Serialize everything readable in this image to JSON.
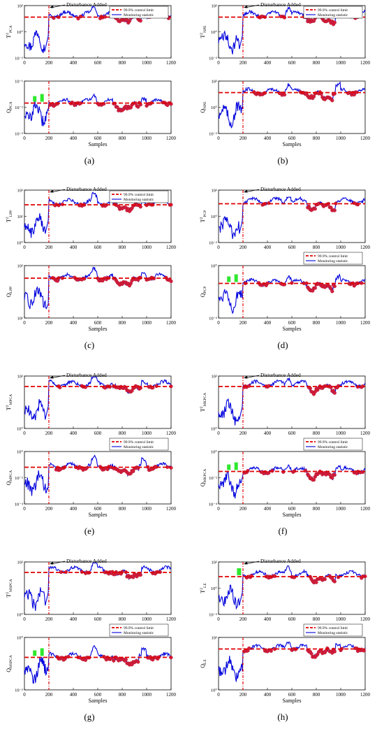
{
  "figure": {
    "captions": [
      "(a)",
      "(b)",
      "(c)",
      "(d)",
      "(e)",
      "(f)",
      "(g)",
      "(h)"
    ]
  },
  "common": {
    "disturbance_label": "Disturbance Added",
    "legend_limit": "99.9% control limit",
    "legend_stat": "Monitoring statistic",
    "xlabel": "Samples",
    "xticks": [
      "0",
      "200",
      "400",
      "600",
      "800",
      "1000",
      "1200"
    ],
    "colors": {
      "limit": "#e00000",
      "stat": "#0000dd",
      "fault": "#d21e3c",
      "alarm": "#2ee82e"
    }
  },
  "chart_data": [
    {
      "panel": "a",
      "type": "line",
      "ylabel_base": "T",
      "ylabel_sup": "2",
      "ylabel_sub": "PCA",
      "yticks": [
        "10⁻²",
        "10⁰",
        "10²"
      ],
      "limit_level": 0.78,
      "x": [
        0,
        1200
      ]
    },
    {
      "panel": "a",
      "type": "line",
      "ylabel_base": "Q",
      "ylabel_sup": "",
      "ylabel_sub": "PCA",
      "yticks": [
        "10⁻³",
        "10⁻²",
        "10⁻¹"
      ],
      "limit_level": 0.58,
      "x": [
        0,
        1200
      ]
    },
    {
      "panel": "b",
      "type": "line",
      "ylabel_base": "T",
      "ylabel_sup": "2",
      "ylabel_sub": "NPE",
      "yticks": [
        "10⁻²",
        "10⁰",
        "10²"
      ],
      "limit_level": 0.78,
      "x": [
        0,
        1200
      ]
    },
    {
      "panel": "b",
      "type": "line",
      "ylabel_base": "Q",
      "ylabel_sup": "",
      "ylabel_sub": "NPE",
      "yticks": [
        "10⁻²",
        "10⁰",
        "10²"
      ],
      "limit_level": 0.78,
      "x": [
        0,
        1200
      ]
    },
    {
      "panel": "c",
      "type": "line",
      "ylabel_base": "T",
      "ylabel_sup": "2",
      "ylabel_sub": "LPP",
      "yticks": [
        "10⁰",
        "10¹",
        "10²"
      ],
      "limit_level": 0.72,
      "x": [
        0,
        1200
      ]
    },
    {
      "panel": "c",
      "type": "line",
      "ylabel_base": "Q",
      "ylabel_sup": "",
      "ylabel_sub": "LPP",
      "yticks": [
        "10¹",
        "10²"
      ],
      "limit_level": 0.76,
      "x": [
        0,
        1200
      ]
    },
    {
      "panel": "d",
      "type": "line",
      "ylabel_base": "T",
      "ylabel_sup": "2",
      "ylabel_sub": "PCP",
      "yticks": [
        "10⁻²",
        "10⁰",
        "10²"
      ],
      "limit_level": 0.74,
      "x": [
        0,
        1200
      ]
    },
    {
      "panel": "d",
      "type": "line",
      "ylabel_base": "Q",
      "ylabel_sup": "",
      "ylabel_sub": "PCP",
      "yticks": [
        "10⁻²",
        "10⁰"
      ],
      "limit_level": 0.66,
      "x": [
        0,
        1200
      ]
    },
    {
      "panel": "e",
      "type": "line",
      "ylabel_base": "T",
      "ylabel_sup": "2",
      "ylabel_sub": "MPCA",
      "yticks": [
        "10⁰",
        "10²"
      ],
      "limit_level": 0.8,
      "x": [
        0,
        1200
      ]
    },
    {
      "panel": "e",
      "type": "line",
      "ylabel_base": "Q",
      "ylabel_sup": "",
      "ylabel_sub": "MPCA",
      "yticks": [
        "10⁻⁴",
        "10⁻²",
        "10⁰"
      ],
      "limit_level": 0.7,
      "x": [
        0,
        1200
      ]
    },
    {
      "panel": "f",
      "type": "line",
      "ylabel_base": "T",
      "ylabel_sup": "2",
      "ylabel_sub": "MKPCA",
      "yticks": [
        "10⁰",
        "10²"
      ],
      "limit_level": 0.8,
      "x": [
        0,
        1200
      ]
    },
    {
      "panel": "f",
      "type": "line",
      "ylabel_base": "Q",
      "ylabel_sup": "",
      "ylabel_sub": "MKPCA",
      "yticks": [
        "10⁻⁴",
        "10⁻²",
        "10⁰"
      ],
      "limit_level": 0.62,
      "x": [
        0,
        1200
      ]
    },
    {
      "panel": "g",
      "type": "line",
      "ylabel_base": "T",
      "ylabel_sup": "2",
      "ylabel_sub": "MSPCA",
      "yticks": [
        "10⁰",
        "10²"
      ],
      "limit_level": 0.8,
      "x": [
        0,
        1200
      ]
    },
    {
      "panel": "g",
      "type": "line",
      "ylabel_base": "Q",
      "ylabel_sup": "",
      "ylabel_sub": "MSPCA",
      "yticks": [
        "10⁻²",
        "10⁰"
      ],
      "limit_level": 0.62,
      "x": [
        0,
        1200
      ]
    },
    {
      "panel": "h",
      "type": "line",
      "ylabel_base": "T",
      "ylabel_sup": "2",
      "ylabel_sub": "LE",
      "yticks": [
        "10⁻²",
        "10⁰",
        "10²"
      ],
      "limit_level": 0.72,
      "x": [
        0,
        1200
      ]
    },
    {
      "panel": "h",
      "type": "line",
      "ylabel_base": "Q",
      "ylabel_sup": "",
      "ylabel_sub": "LE",
      "yticks": [
        "10⁰",
        "10²"
      ],
      "limit_level": 0.78,
      "x": [
        0,
        1200
      ]
    }
  ]
}
